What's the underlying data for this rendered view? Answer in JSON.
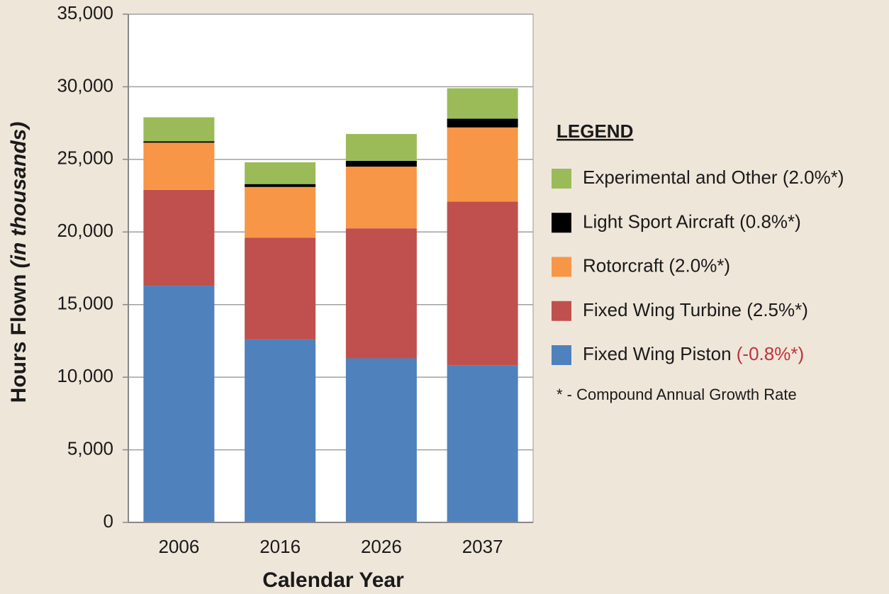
{
  "chart_data": {
    "type": "stacked_bar",
    "xlabel": "Calendar Year",
    "ylabel": "Hours Flown",
    "ylabel_note": "(in thousands)",
    "categories": [
      "2006",
      "2016",
      "2026",
      "2037"
    ],
    "series": [
      {
        "name": "Fixed Wing Piston",
        "growth_rate": "(-0.8%*)",
        "rate_color": "#c0323a",
        "color": "#4f81bd",
        "values": [
          16300,
          12600,
          11300,
          10800
        ]
      },
      {
        "name": "Fixed Wing Turbine",
        "growth_rate": "(2.5%*)",
        "rate_color": "#1a1a1a",
        "color": "#c0504d",
        "values": [
          6600,
          7000,
          8950,
          11300
        ]
      },
      {
        "name": "Rotorcraft",
        "growth_rate": "(2.0%*)",
        "rate_color": "#1a1a1a",
        "color": "#f79646",
        "values": [
          3250,
          3500,
          4250,
          5100
        ]
      },
      {
        "name": "Light Sport Aircraft",
        "growth_rate": "(0.8%*)",
        "rate_color": "#1a1a1a",
        "color": "#000000",
        "values": [
          100,
          200,
          400,
          600
        ]
      },
      {
        "name": "Experimental and Other",
        "growth_rate": "(2.0%*)",
        "rate_color": "#1a1a1a",
        "color": "#9bbb59",
        "values": [
          1650,
          1500,
          1850,
          2100
        ]
      }
    ],
    "legend_title": "LEGEND",
    "footnote": "* - Compound Annual Growth Rate",
    "ylim": [
      0,
      35000
    ],
    "yticks": [
      0,
      {
        "value": 5000,
        "label": "5,000"
      },
      {
        "value": 10000,
        "label": "10,000"
      },
      {
        "value": 15000,
        "label": "15,000"
      },
      {
        "value": 20000,
        "label": "20,000"
      },
      {
        "value": 25000,
        "label": "25,000"
      },
      {
        "value": 30000,
        "label": "30,000"
      },
      {
        "value": 35000,
        "label": "35,000"
      }
    ],
    "grid": true
  }
}
